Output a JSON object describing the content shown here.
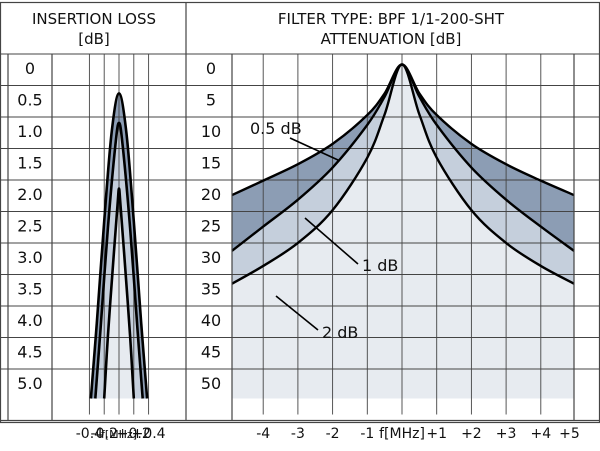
{
  "header": {
    "left_title_1": "INSERTION LOSS",
    "left_title_2": "[dB]",
    "right_title_1": "FILTER TYPE: BPF 1/1-200-SHT",
    "right_title_2": "ATTENUATION [dB]"
  },
  "colors": {
    "dark_band": "#8c9db4",
    "light_band": "#c5cfdc",
    "inner_fill": "#e7ebf0",
    "grid": "#444444",
    "curve": "#000000",
    "background": "#ffffff"
  },
  "chart_data": [
    {
      "type": "line",
      "title": "INSERTION LOSS [dB]",
      "xlabel": "f[MHz]",
      "x_tick_labels": [
        "-0.4",
        "-0.2",
        "f[MHz]",
        "+0.2",
        "+0.4"
      ],
      "xlim": [
        -0.45,
        0.45
      ],
      "y_tick_labels": [
        "0",
        "0.5",
        "1.0",
        "1.5",
        "2.0",
        "2.5",
        "3.0",
        "3.5",
        "4.0",
        "4.5",
        "5.0"
      ],
      "ylim": [
        0,
        5.25
      ],
      "y_inverted": true,
      "grid": true,
      "series": [
        {
          "peak_loss_db": 0.6,
          "x": [
            -0.38,
            -0.3,
            -0.2,
            -0.1,
            0,
            0.1,
            0.2,
            0.3,
            0.38
          ],
          "y": [
            5.25,
            4.1,
            2.55,
            1.2,
            0.6,
            1.2,
            2.55,
            4.1,
            5.25
          ]
        },
        {
          "peak_loss_db": 1.05,
          "x": [
            -0.32,
            -0.25,
            -0.15,
            -0.05,
            0,
            0.05,
            0.15,
            0.25,
            0.32
          ],
          "y": [
            5.25,
            4.2,
            2.65,
            1.4,
            1.05,
            1.4,
            2.65,
            4.2,
            5.25
          ]
        },
        {
          "peak_loss_db": 2.05,
          "x": [
            -0.2,
            -0.15,
            -0.08,
            -0.02,
            0,
            0.02,
            0.08,
            0.15,
            0.2
          ],
          "y": [
            5.25,
            4.3,
            3.2,
            2.3,
            2.05,
            2.3,
            3.2,
            4.3,
            5.25
          ]
        }
      ]
    },
    {
      "type": "line",
      "title": "FILTER TYPE: BPF 1/1-200-SHT ATTENUATION [dB]",
      "xlabel": "f[MHz]",
      "x_tick_labels": [
        "-4",
        "-3",
        "-2",
        "-1",
        "f[MHz]",
        "+1",
        "+2",
        "+3",
        "+4",
        "+5"
      ],
      "xlim": [
        -5.25,
        5.25
      ],
      "y_tick_labels": [
        "0",
        "5",
        "10",
        "15",
        "20",
        "25",
        "30",
        "35",
        "40",
        "45",
        "50"
      ],
      "ylim": [
        0,
        52.5
      ],
      "y_inverted": true,
      "grid": true,
      "annotations": [
        "0.5 dB",
        "1 dB",
        "2 dB"
      ],
      "series": [
        {
          "name": "0.5 dB",
          "x": [
            -5.25,
            -4,
            -3,
            -2,
            -1,
            -0.5,
            0,
            0.5,
            1,
            2,
            3,
            4,
            5.25
          ],
          "y": [
            21.5,
            19.3,
            16.8,
            13.7,
            9.3,
            6,
            1.6,
            6,
            9.3,
            13.7,
            16.8,
            19.3,
            21.5
          ]
        },
        {
          "name": "1 dB",
          "x": [
            -5.25,
            -4,
            -3,
            -2,
            -1,
            -0.5,
            0,
            0.5,
            1,
            2,
            3,
            4,
            5.25
          ],
          "y": [
            30,
            26.3,
            22.2,
            17.3,
            10.8,
            6.5,
            1.6,
            6.5,
            10.8,
            17.3,
            22.2,
            26.3,
            30
          ]
        },
        {
          "name": "2 dB",
          "x": [
            -5.25,
            -4,
            -3,
            -2,
            -1,
            -0.5,
            0,
            0.5,
            1,
            2,
            3,
            4,
            5.25
          ],
          "y": [
            35,
            32.3,
            28.8,
            23.8,
            15.8,
            9.2,
            1.6,
            9.2,
            15.8,
            23.8,
            28.8,
            32.3,
            35
          ]
        }
      ]
    }
  ]
}
